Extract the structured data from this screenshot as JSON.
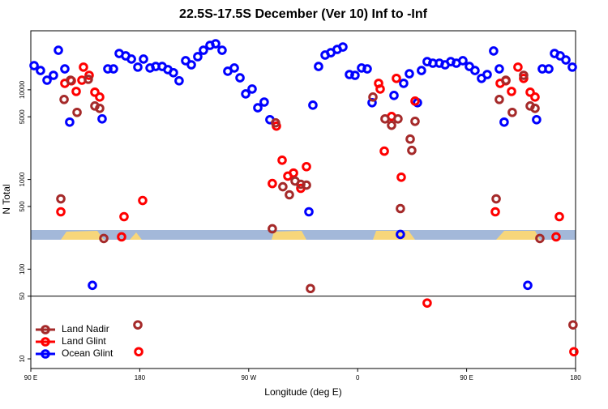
{
  "chart_data": {
    "type": "scatter",
    "title": "22.5S-17.5S December (Ver 10)   Inf to -Inf",
    "xlabel": "Longitude (deg E)",
    "ylabel": "N Total",
    "xlim": [
      90,
      540
    ],
    "xticks": [
      {
        "value": 90,
        "label": "90 E"
      },
      180,
      {
        "value": 270,
        "label": "90 W"
      },
      {
        "value": 360,
        "label": "0"
      },
      {
        "value": 450,
        "label": "90 E"
      },
      {
        "value": 540,
        "label": "180"
      }
    ],
    "ylim": [
      7.8,
      45500
    ],
    "yticks": [
      10,
      50,
      100,
      500,
      1000,
      5000,
      10000
    ],
    "log_y": true,
    "hline": 50,
    "legend": "lower left",
    "series": [
      {
        "name": "Land Nadir",
        "color": "#a52a2a",
        "x": [
          114.8,
          117.5,
          122.8,
          128.2,
          137.5,
          142.9,
          146.9,
          150.3,
          178.4,
          289.5,
          292.2,
          298.2,
          303.6,
          308.3,
          313.0,
          317.7,
          321.0,
          372.6,
          382.6,
          388.0,
          393.3,
          403.4,
          404.7,
          407.4,
          395.3,
          474.4,
          477.0,
          482.4,
          487.7,
          497.1,
          502.5,
          506.5,
          510.5,
          537.9
        ],
        "values": [
          608,
          7800,
          12800,
          5600,
          13100,
          6600,
          6210,
          220,
          23.9,
          282,
          4280,
          830,
          675,
          960,
          883,
          865,
          60.8,
          8300,
          4740,
          4020,
          4740,
          2820,
          2110,
          4450,
          474,
          608,
          7800,
          12800,
          5600,
          14500,
          6600,
          6210,
          220,
          23.9
        ]
      },
      {
        "name": "Land Glint",
        "color": "#ff0000",
        "x": [
          114.8,
          118.1,
          123.5,
          127.5,
          132.2,
          133.5,
          138.2,
          142.9,
          146.9,
          165.0,
          167.0,
          182.4,
          179.1,
          289.5,
          292.9,
          297.6,
          302.3,
          307.0,
          313.0,
          317.7,
          377.3,
          378.6,
          382.0,
          388.0,
          392.0,
          396.0,
          407.4,
          417.4,
          473.7,
          477.7,
          482.4,
          487.1,
          492.4,
          497.1,
          502.5,
          506.5,
          523.9,
          526.6,
          538.6
        ],
        "values": [
          436,
          11800,
          12600,
          9590,
          12800,
          17900,
          14500,
          9400,
          8300,
          229,
          385,
          583,
          12.0,
          901,
          3940,
          1640,
          1090,
          1180,
          797,
          1390,
          11800,
          10200,
          2070,
          5040,
          13400,
          1060,
          7480,
          41.9,
          436,
          11800,
          12600,
          9590,
          17900,
          13400,
          9400,
          8300,
          229,
          385,
          12.0
        ]
      },
      {
        "name": "Ocean Glint",
        "color": "#0000ff",
        "x": [
          92.7,
          98.0,
          103.4,
          108.7,
          112.8,
          118.1,
          122.1,
          140.9,
          148.9,
          153.6,
          158.3,
          163.0,
          168.4,
          173.1,
          178.4,
          183.1,
          188.5,
          193.2,
          198.5,
          203.2,
          207.8,
          212.5,
          217.9,
          222.6,
          227.9,
          232.6,
          238.0,
          242.7,
          248.0,
          252.7,
          258.1,
          262.8,
          267.5,
          272.8,
          277.5,
          282.8,
          287.5,
          319.7,
          323.0,
          327.7,
          333.1,
          337.8,
          343.1,
          347.8,
          353.2,
          357.8,
          363.2,
          367.9,
          371.9,
          390.0,
          395.3,
          398.0,
          402.7,
          409.4,
          412.7,
          417.4,
          422.1,
          427.5,
          432.2,
          436.9,
          441.5,
          446.9,
          452.3,
          456.9,
          462.3,
          467.0,
          472.3,
          477.0,
          481.0,
          500.5,
          507.8,
          512.5,
          517.9,
          522.6,
          527.3,
          532.0,
          537.3
        ],
        "values": [
          18600,
          16400,
          12800,
          14500,
          27600,
          17100,
          4360,
          66,
          4740,
          17100,
          17100,
          25400,
          23900,
          22000,
          17900,
          22000,
          17500,
          18200,
          18200,
          16800,
          15500,
          12600,
          21100,
          19000,
          23400,
          27600,
          31300,
          32600,
          27600,
          16100,
          17500,
          13600,
          9000,
          10200,
          6300,
          7300,
          4640,
          436,
          6740,
          18200,
          24400,
          25900,
          28200,
          30000,
          14800,
          14500,
          17500,
          17100,
          7180,
          8650,
          244,
          11800,
          15100,
          7180,
          16400,
          20600,
          19800,
          19800,
          19000,
          20600,
          19800,
          21100,
          18200,
          16400,
          13400,
          14800,
          27100,
          17100,
          4360,
          66,
          4640,
          17100,
          17100,
          25400,
          23900,
          21500,
          17900
        ]
      }
    ]
  }
}
